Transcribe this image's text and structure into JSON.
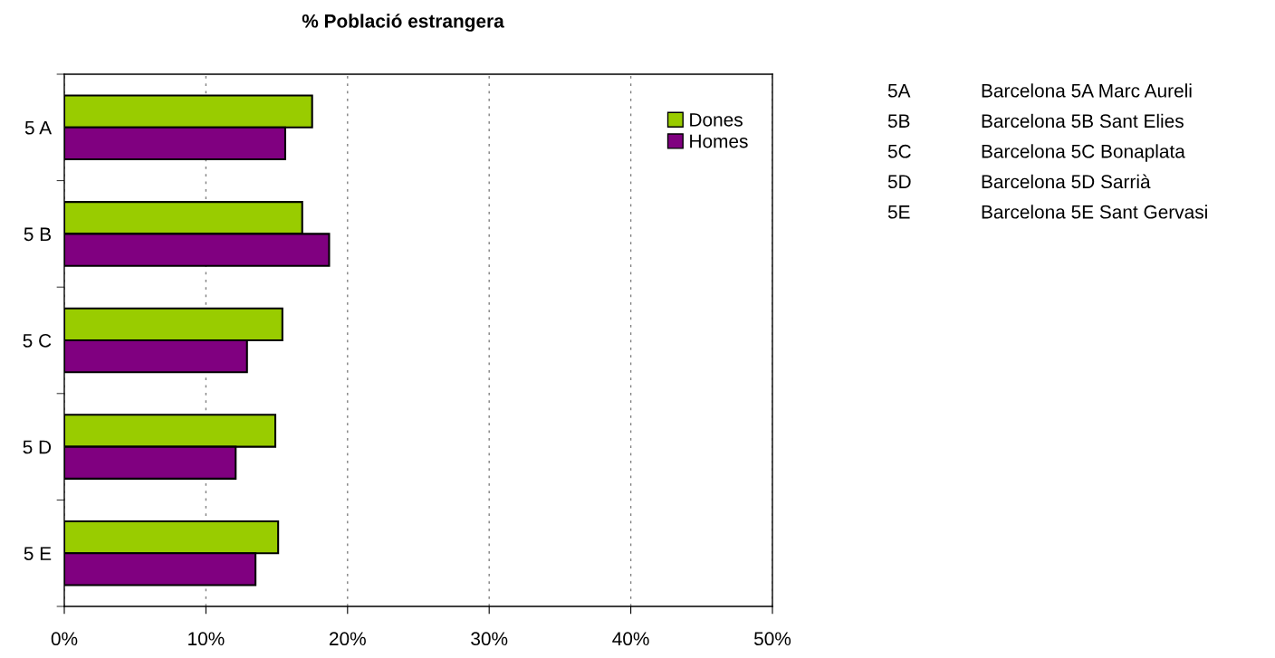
{
  "chart_data": {
    "type": "bar",
    "orientation": "horizontal",
    "title": "% Població estrangera",
    "categories": [
      "5 A",
      "5 B",
      "5 C",
      "5 D",
      "5 E"
    ],
    "series": [
      {
        "name": "Dones",
        "color": "#99cc00",
        "values": [
          17.5,
          16.8,
          15.4,
          14.9,
          15.1
        ]
      },
      {
        "name": "Homes",
        "color": "#800080",
        "values": [
          15.6,
          18.7,
          12.9,
          12.1,
          13.5
        ]
      }
    ],
    "xlim": [
      0,
      50
    ],
    "xticks": [
      {
        "value": 0,
        "label": "0%"
      },
      {
        "value": 10,
        "label": "10%"
      },
      {
        "value": 20,
        "label": "20%"
      },
      {
        "value": 30,
        "label": "30%"
      },
      {
        "value": 40,
        "label": "40%"
      },
      {
        "value": 50,
        "label": "50%"
      }
    ],
    "grid": "x",
    "legend": "top right",
    "annotations": [
      "5A",
      "Barcelona 5A Marc Aureli",
      "5B",
      "Barcelona 5B Sant Elies",
      "5C",
      "Barcelona 5C Bonaplata",
      "5D",
      "Barcelona 5D Sarrià",
      "5E",
      "Barcelona 5E Sant Gervasi"
    ]
  }
}
